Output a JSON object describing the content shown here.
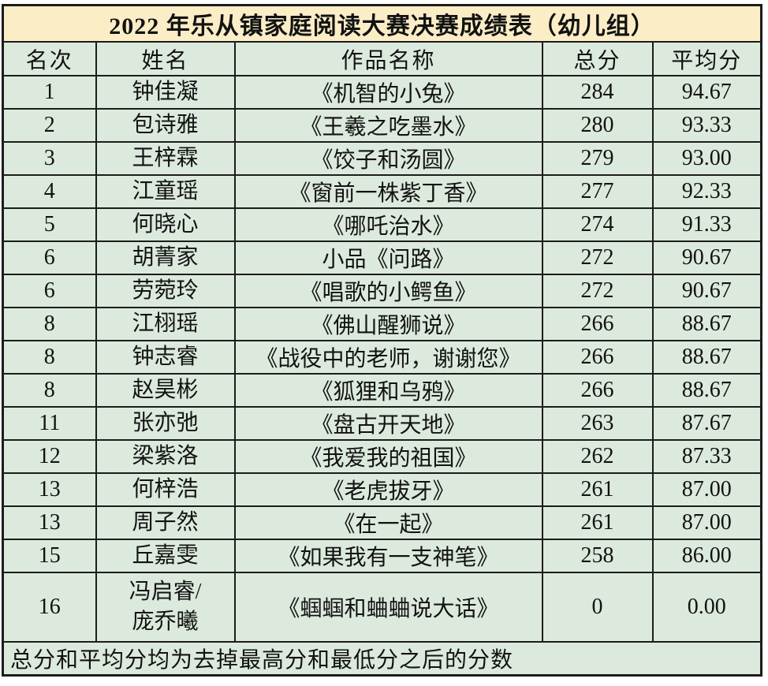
{
  "title": "2022 年乐从镇家庭阅读大赛决赛成绩表（幼儿组）",
  "columns": [
    "名次",
    "姓名",
    "作品名称",
    "总分",
    "平均分"
  ],
  "rows": [
    {
      "rank": "1",
      "name": "钟佳凝",
      "work": "《机智的小兔》",
      "total": "284",
      "avg": "94.67"
    },
    {
      "rank": "2",
      "name": "包诗雅",
      "work": "《王羲之吃墨水》",
      "total": "280",
      "avg": "93.33"
    },
    {
      "rank": "3",
      "name": "王梓霖",
      "work": "《饺子和汤圆》",
      "total": "279",
      "avg": "93.00"
    },
    {
      "rank": "4",
      "name": "江童瑶",
      "work": "《窗前一株紫丁香》",
      "total": "277",
      "avg": "92.33"
    },
    {
      "rank": "5",
      "name": "何晓心",
      "work": "《哪吒治水》",
      "total": "274",
      "avg": "91.33"
    },
    {
      "rank": "6",
      "name": "胡菁家",
      "work": "小品《问路》",
      "total": "272",
      "avg": "90.67"
    },
    {
      "rank": "6",
      "name": "劳菀玲",
      "work": "《唱歌的小鳄鱼》",
      "total": "272",
      "avg": "90.67"
    },
    {
      "rank": "8",
      "name": "江栩瑶",
      "work": "《佛山醒狮说》",
      "total": "266",
      "avg": "88.67"
    },
    {
      "rank": "8",
      "name": "钟志睿",
      "work": "《战役中的老师，谢谢您》",
      "total": "266",
      "avg": "88.67"
    },
    {
      "rank": "8",
      "name": "赵昊彬",
      "work": "《狐狸和乌鸦》",
      "total": "266",
      "avg": "88.67"
    },
    {
      "rank": "11",
      "name": "张亦弛",
      "work": "《盘古开天地》",
      "total": "263",
      "avg": "87.67"
    },
    {
      "rank": "12",
      "name": "梁紫洛",
      "work": "《我爱我的祖国》",
      "total": "262",
      "avg": "87.33"
    },
    {
      "rank": "13",
      "name": "何梓浩",
      "work": "《老虎拔牙》",
      "total": "261",
      "avg": "87.00"
    },
    {
      "rank": "13",
      "name": "周子然",
      "work": "《在一起》",
      "total": "261",
      "avg": "87.00"
    },
    {
      "rank": "15",
      "name": "丘嘉雯",
      "work": "《如果我有一支神笔》",
      "total": "258",
      "avg": "86.00"
    },
    {
      "rank": "16",
      "name": "冯启睿/\n庞乔曦",
      "work": "《蝈蝈和蛐蛐说大话》",
      "total": "0",
      "avg": "0.00"
    }
  ],
  "footnote": "总分和平均分均为去掉最高分和最低分之后的分数",
  "colors": {
    "title_bg": "#fbedc6",
    "cell_bg": "#dceadd",
    "border": "#1c1c1c",
    "text": "#121212"
  }
}
